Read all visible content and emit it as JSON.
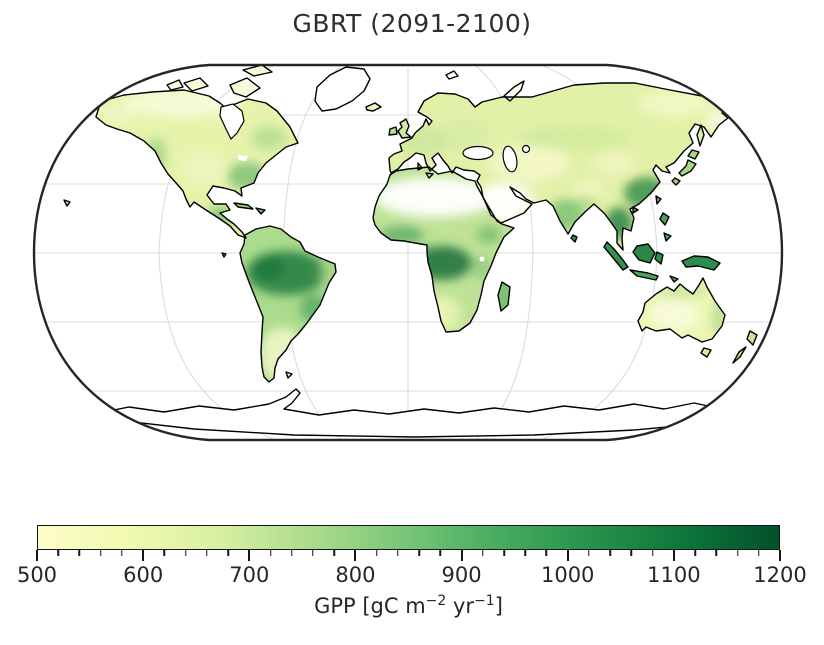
{
  "figure": {
    "title": "GBRT (2091-2100)",
    "background": "#ffffff",
    "text_color": "#2e2e2e"
  },
  "map": {
    "projection": "Robinson",
    "ocean_color": "#ffffff",
    "border_color": "#262626",
    "coastline_color": "#000000",
    "graticule_color": "#dcdcdc",
    "region_fills": {
      "north-america": "#e6f3ab",
      "greenland": "#ffffff",
      "arctic-island": "#f7fbdd",
      "south-america": "#abdb8d",
      "africa": "#bfe297",
      "eurasia": "#e2f1a8",
      "australia": "#edf6b2",
      "antarctica": "#ffffff",
      "madagascar": "#7dc270",
      "iceland": "#eef6c4",
      "uk": "#cfe9a0",
      "ireland": "#b9e093",
      "cuba": "#9ad27f",
      "hispaniola": "#6fbc68",
      "hawaii": "#cfe9a0",
      "galapagos": "#9ad27f",
      "falkland": "#e6f3ab",
      "novaya-zemlya": "#fbfde8",
      "svalbard": "#ffffff",
      "sakhalin": "#d7efa2",
      "japan": "#a6d884",
      "taiwan": "#5bb163",
      "hainan": "#4aa45a",
      "philippines": "#4aa45a",
      "sri-lanka": "#35914d",
      "sumatra": "#35914d",
      "borneo": "#2a8746",
      "java": "#49a55b",
      "sulawesi": "#2f8f4a",
      "new-guinea": "#2e8c4c",
      "timor": "#49a55b",
      "tasmania": "#d7efa2",
      "new-zealand": "#c9e695",
      "sicily": "#cfe9a0",
      "sardinia": "#cfe9a0",
      "hudson-bay": "#ffffff",
      "black-sea": "#ffffff",
      "caspian-sea": "#ffffff",
      "aral-sea": "#ffffff"
    }
  },
  "colorbar": {
    "min": 500,
    "max": 1200,
    "major_ticks": [
      500,
      600,
      700,
      800,
      900,
      1000,
      1100,
      1200
    ],
    "minor_tick_step": 20,
    "colormap": "YlGn",
    "gradient_stops": [
      "#fdfdc9",
      "#f0f9b1",
      "#d7efa2",
      "#a9da8b",
      "#77c577",
      "#45ab5e",
      "#27924c",
      "#0c753b",
      "#03512a"
    ],
    "border_color": "#151515",
    "tick_color": "#151515",
    "label": {
      "prefix": "GPP [gC m",
      "sup_a": "−2",
      "mid": " yr",
      "sup_b": "−1",
      "suffix": "]"
    }
  }
}
